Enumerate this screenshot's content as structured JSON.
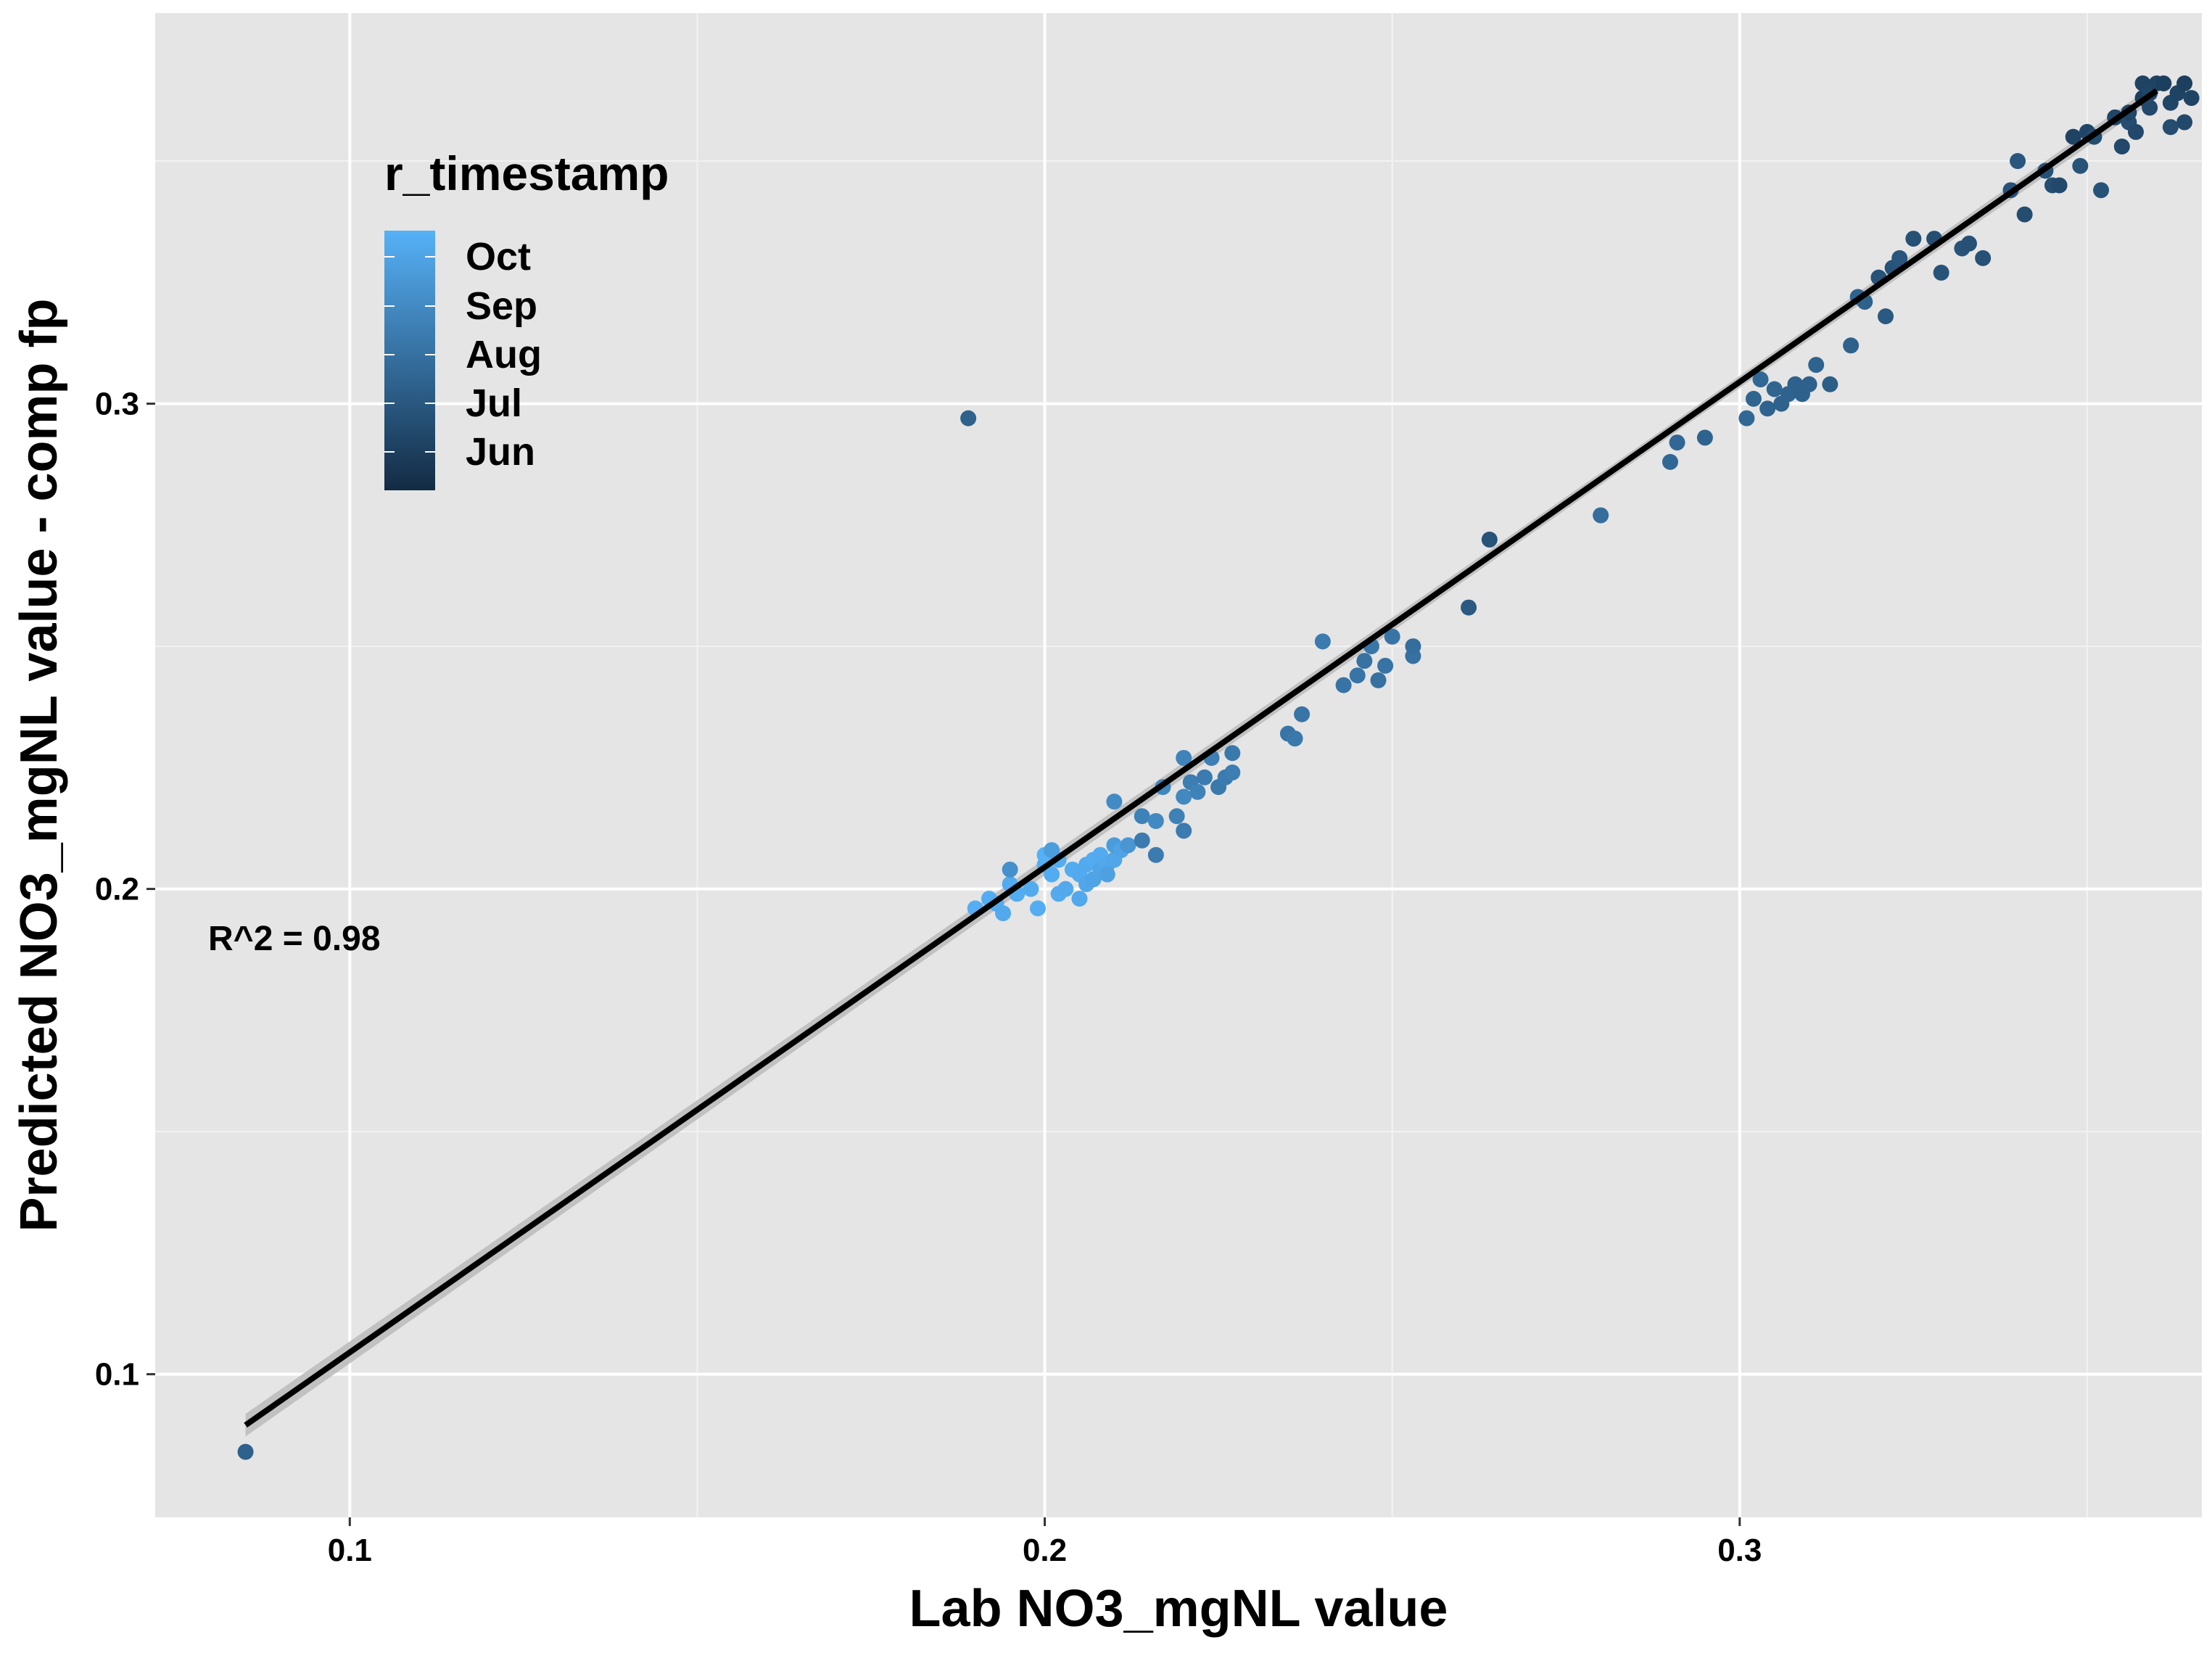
{
  "chart_data": {
    "type": "scatter",
    "xlabel": "Lab NO3_mgNL value",
    "ylabel": "Predicted NO3_mgNL value - comp fp",
    "xlim": [
      0.072,
      0.3665
    ],
    "ylim": [
      0.0705,
      0.3805
    ],
    "x_ticks": [
      0.1,
      0.2,
      0.3
    ],
    "x_tick_labels": [
      "0.1",
      "0.2",
      "0.3"
    ],
    "y_ticks": [
      0.1,
      0.2,
      0.3
    ],
    "y_tick_labels": [
      "0.1",
      "0.2",
      "0.3"
    ],
    "grid": true,
    "panel_background": "#e5e5e5",
    "legend": {
      "title": "r_timestamp",
      "placement": "top-left",
      "labels": [
        "Oct",
        "Sep",
        "Aug",
        "Jul",
        "Jun"
      ],
      "color_high": "#56b1f7",
      "color_low": "#132b43"
    },
    "annotation": "R^2 =  0.98",
    "fit_line": {
      "x": [
        0.085,
        0.36
      ],
      "y": [
        0.0895,
        0.3645
      ],
      "color": "#000000",
      "band_color": "#bdbdbd"
    },
    "series": [
      {
        "color_scale": "date: 0 = Jun (dark) to 1 = Oct (light)",
        "points": [
          [
            0.085,
            0.084,
            0.4
          ],
          [
            0.189,
            0.297,
            0.4
          ],
          [
            0.19,
            0.196,
            0.98
          ],
          [
            0.192,
            0.198,
            0.97
          ],
          [
            0.193,
            0.197,
            0.96
          ],
          [
            0.195,
            0.201,
            0.95
          ],
          [
            0.194,
            0.195,
            0.94
          ],
          [
            0.196,
            0.199,
            0.96
          ],
          [
            0.198,
            0.2,
            0.95
          ],
          [
            0.199,
            0.196,
            0.97
          ],
          [
            0.2,
            0.205,
            0.98
          ],
          [
            0.2,
            0.207,
            0.99
          ],
          [
            0.201,
            0.203,
            0.96
          ],
          [
            0.202,
            0.199,
            0.95
          ],
          [
            0.202,
            0.206,
            0.97
          ],
          [
            0.203,
            0.2,
            0.94
          ],
          [
            0.204,
            0.204,
            0.96
          ],
          [
            0.205,
            0.198,
            0.93
          ],
          [
            0.205,
            0.203,
            0.95
          ],
          [
            0.206,
            0.201,
            0.92
          ],
          [
            0.206,
            0.205,
            0.94
          ],
          [
            0.207,
            0.202,
            0.9
          ],
          [
            0.207,
            0.206,
            0.96
          ],
          [
            0.208,
            0.204,
            0.91
          ],
          [
            0.208,
            0.207,
            0.95
          ],
          [
            0.209,
            0.205,
            0.93
          ],
          [
            0.209,
            0.203,
            0.88
          ],
          [
            0.21,
            0.206,
            0.92
          ],
          [
            0.21,
            0.209,
            0.84
          ],
          [
            0.211,
            0.208,
            0.89
          ],
          [
            0.195,
            0.204,
            0.75
          ],
          [
            0.201,
            0.208,
            0.85
          ],
          [
            0.21,
            0.218,
            0.72
          ],
          [
            0.212,
            0.209,
            0.8
          ],
          [
            0.214,
            0.21,
            0.6
          ],
          [
            0.214,
            0.215,
            0.65
          ],
          [
            0.216,
            0.214,
            0.7
          ],
          [
            0.216,
            0.207,
            0.6
          ],
          [
            0.217,
            0.221,
            0.68
          ],
          [
            0.219,
            0.215,
            0.64
          ],
          [
            0.22,
            0.219,
            0.7
          ],
          [
            0.22,
            0.227,
            0.66
          ],
          [
            0.22,
            0.212,
            0.6
          ],
          [
            0.221,
            0.222,
            0.62
          ],
          [
            0.222,
            0.22,
            0.65
          ],
          [
            0.223,
            0.223,
            0.6
          ],
          [
            0.224,
            0.227,
            0.63
          ],
          [
            0.225,
            0.221,
            0.58
          ],
          [
            0.226,
            0.223,
            0.6
          ],
          [
            0.227,
            0.224,
            0.62
          ],
          [
            0.227,
            0.228,
            0.58
          ],
          [
            0.235,
            0.232,
            0.55
          ],
          [
            0.236,
            0.231,
            0.58
          ],
          [
            0.237,
            0.236,
            0.55
          ],
          [
            0.24,
            0.251,
            0.6
          ],
          [
            0.243,
            0.242,
            0.54
          ],
          [
            0.245,
            0.244,
            0.55
          ],
          [
            0.246,
            0.247,
            0.53
          ],
          [
            0.247,
            0.25,
            0.56
          ],
          [
            0.248,
            0.243,
            0.52
          ],
          [
            0.249,
            0.246,
            0.54
          ],
          [
            0.25,
            0.252,
            0.55
          ],
          [
            0.253,
            0.248,
            0.52
          ],
          [
            0.253,
            0.25,
            0.5
          ],
          [
            0.261,
            0.258,
            0.35
          ],
          [
            0.264,
            0.272,
            0.3
          ],
          [
            0.28,
            0.277,
            0.5
          ],
          [
            0.29,
            0.288,
            0.45
          ],
          [
            0.291,
            0.292,
            0.45
          ],
          [
            0.295,
            0.293,
            0.42
          ],
          [
            0.301,
            0.297,
            0.45
          ],
          [
            0.302,
            0.301,
            0.43
          ],
          [
            0.303,
            0.305,
            0.45
          ],
          [
            0.304,
            0.299,
            0.42
          ],
          [
            0.305,
            0.303,
            0.43
          ],
          [
            0.306,
            0.3,
            0.4
          ],
          [
            0.307,
            0.302,
            0.42
          ],
          [
            0.308,
            0.304,
            0.4
          ],
          [
            0.309,
            0.302,
            0.41
          ],
          [
            0.31,
            0.304,
            0.4
          ],
          [
            0.311,
            0.308,
            0.42
          ],
          [
            0.313,
            0.304,
            0.38
          ],
          [
            0.316,
            0.312,
            0.4
          ],
          [
            0.317,
            0.322,
            0.42
          ],
          [
            0.318,
            0.321,
            0.4
          ],
          [
            0.32,
            0.326,
            0.3
          ],
          [
            0.321,
            0.318,
            0.35
          ],
          [
            0.322,
            0.328,
            0.3
          ],
          [
            0.323,
            0.33,
            0.32
          ],
          [
            0.325,
            0.334,
            0.28
          ],
          [
            0.328,
            0.334,
            0.26
          ],
          [
            0.329,
            0.327,
            0.3
          ],
          [
            0.332,
            0.332,
            0.3
          ],
          [
            0.333,
            0.333,
            0.28
          ],
          [
            0.335,
            0.33,
            0.28
          ],
          [
            0.339,
            0.344,
            0.3
          ],
          [
            0.34,
            0.35,
            0.32
          ],
          [
            0.341,
            0.339,
            0.25
          ],
          [
            0.344,
            0.348,
            0.28
          ],
          [
            0.345,
            0.345,
            0.25
          ],
          [
            0.346,
            0.345,
            0.22
          ],
          [
            0.348,
            0.355,
            0.18
          ],
          [
            0.349,
            0.349,
            0.3
          ],
          [
            0.35,
            0.356,
            0.2
          ],
          [
            0.351,
            0.355,
            0.25
          ],
          [
            0.352,
            0.344,
            0.3
          ],
          [
            0.354,
            0.359,
            0.2
          ],
          [
            0.355,
            0.353,
            0.22
          ],
          [
            0.356,
            0.358,
            0.25
          ],
          [
            0.356,
            0.36,
            0.2
          ],
          [
            0.357,
            0.356,
            0.22
          ],
          [
            0.358,
            0.363,
            0.15
          ],
          [
            0.358,
            0.366,
            0.18
          ],
          [
            0.359,
            0.364,
            0.2
          ],
          [
            0.359,
            0.361,
            0.22
          ],
          [
            0.36,
            0.366,
            0.18
          ],
          [
            0.361,
            0.366,
            0.15
          ],
          [
            0.362,
            0.362,
            0.2
          ],
          [
            0.363,
            0.364,
            0.18
          ],
          [
            0.364,
            0.366,
            0.15
          ],
          [
            0.364,
            0.358,
            0.22
          ],
          [
            0.365,
            0.363,
            0.18
          ],
          [
            0.362,
            0.357,
            0.25
          ]
        ]
      }
    ]
  }
}
